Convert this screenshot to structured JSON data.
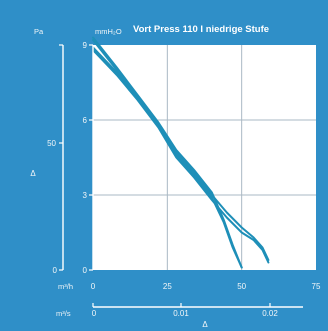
{
  "chart_data": {
    "type": "line",
    "title": "Vort Press 110 I niedrige Stufe",
    "colors": {
      "background": "#2f8fc8",
      "plot": "#ffffff",
      "grid": "#aab8c4",
      "line": "#1e8fb8",
      "axis": "#ffffff"
    },
    "axes": {
      "y_left_unit": "mmH₂O",
      "y_left_ticks": [
        "0",
        "3",
        "6",
        "9"
      ],
      "y_left_range": [
        0,
        9
      ],
      "y_pa_unit": "Pa",
      "y_pa_ticks": [
        "0",
        "50"
      ],
      "y_pa_label": "Δ",
      "x_top_unit": "m³/h",
      "x_top_ticks": [
        "0",
        "25",
        "50",
        "75"
      ],
      "x_range": [
        0,
        75
      ],
      "x_bottom_unit": "m³/s",
      "x_bottom_ticks": [
        "0",
        "0.01",
        "0.02"
      ],
      "x_bottom_label": "Δ"
    },
    "series": [
      {
        "x": [
          0,
          8,
          15,
          22,
          28,
          34,
          40,
          44,
          47,
          50
        ],
        "y": [
          9.3,
          8.1,
          7.0,
          5.9,
          4.8,
          4.0,
          3.1,
          2.0,
          1.0,
          0.1
        ]
      },
      {
        "x": [
          0,
          8,
          15,
          22,
          28,
          34,
          40,
          44,
          47,
          50
        ],
        "y": [
          8.9,
          7.9,
          6.9,
          5.8,
          4.6,
          3.8,
          2.9,
          1.9,
          0.9,
          0.1
        ]
      },
      {
        "x": [
          0,
          8,
          15,
          22,
          28,
          34,
          40,
          45,
          50,
          54,
          57,
          59
        ],
        "y": [
          9.2,
          8.0,
          6.9,
          5.8,
          4.7,
          3.9,
          3.0,
          2.3,
          1.7,
          1.3,
          0.9,
          0.4
        ]
      },
      {
        "x": [
          0,
          8,
          15,
          22,
          28,
          34,
          40,
          45,
          50,
          54,
          57,
          59
        ],
        "y": [
          8.8,
          7.8,
          6.8,
          5.7,
          4.5,
          3.7,
          2.8,
          2.1,
          1.5,
          1.2,
          0.8,
          0.3
        ]
      }
    ]
  }
}
